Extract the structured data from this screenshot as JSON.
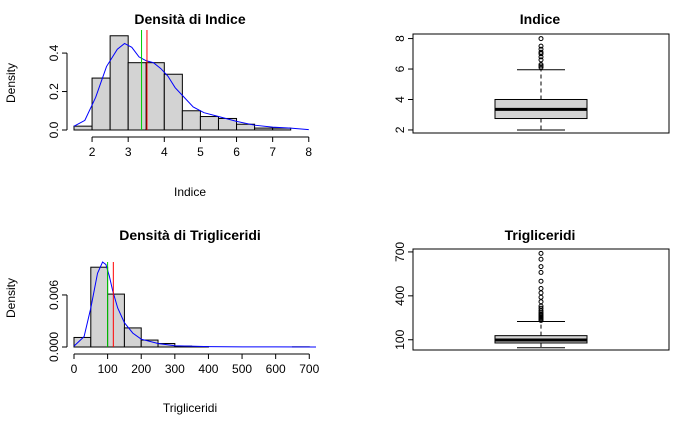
{
  "chart_data": [
    {
      "type": "histogram",
      "title": "Densità di Indice",
      "xlabel": "Indice",
      "ylabel": "Density",
      "xlim": [
        1.5,
        8.2
      ],
      "ylim": [
        0,
        0.52
      ],
      "xticks": [
        "2",
        "3",
        "4",
        "5",
        "6",
        "7",
        "8"
      ],
      "yticks": [
        "0.0",
        "0.2",
        "0.4"
      ],
      "bins": [
        {
          "from": 1.5,
          "to": 2.0,
          "density": 0.02
        },
        {
          "from": 2.0,
          "to": 2.5,
          "density": 0.27
        },
        {
          "from": 2.5,
          "to": 3.0,
          "density": 0.49
        },
        {
          "from": 3.0,
          "to": 3.5,
          "density": 0.35
        },
        {
          "from": 3.5,
          "to": 4.0,
          "density": 0.35
        },
        {
          "from": 4.0,
          "to": 4.5,
          "density": 0.29
        },
        {
          "from": 4.5,
          "to": 5.0,
          "density": 0.1
        },
        {
          "from": 5.0,
          "to": 5.5,
          "density": 0.07
        },
        {
          "from": 5.5,
          "to": 6.0,
          "density": 0.06
        },
        {
          "from": 6.0,
          "to": 6.5,
          "density": 0.03
        },
        {
          "from": 6.5,
          "to": 7.0,
          "density": 0.01
        },
        {
          "from": 7.0,
          "to": 7.5,
          "density": 0.01
        },
        {
          "from": 7.5,
          "to": 8.0,
          "density": 0.0
        }
      ],
      "density_curve": {
        "x": [
          1.5,
          1.8,
          2.1,
          2.4,
          2.7,
          2.9,
          3.1,
          3.3,
          3.5,
          3.7,
          3.9,
          4.1,
          4.3,
          4.5,
          4.8,
          5.1,
          5.5,
          6.0,
          6.5,
          7.0,
          7.5,
          8.0
        ],
        "y": [
          0.02,
          0.05,
          0.17,
          0.33,
          0.42,
          0.45,
          0.43,
          0.38,
          0.36,
          0.35,
          0.32,
          0.28,
          0.22,
          0.18,
          0.12,
          0.09,
          0.07,
          0.045,
          0.025,
          0.015,
          0.01,
          0.002
        ]
      },
      "vlines": [
        {
          "x": 3.37,
          "color": "#00cc00"
        },
        {
          "x": 3.52,
          "color": "#ff0000"
        }
      ],
      "colors": {
        "bar_fill": "#d3d3d3",
        "curve": "#0000ff"
      }
    },
    {
      "type": "boxplot",
      "title": "Indice",
      "ylim": [
        1.8,
        8.3
      ],
      "yticks": [
        "2",
        "4",
        "6",
        "8"
      ],
      "whisker_low": 2.0,
      "q1": 2.75,
      "median": 3.35,
      "q3": 4.0,
      "whisker_high": 5.95,
      "outliers": [
        6.1,
        6.2,
        6.3,
        6.6,
        6.8,
        7.0,
        7.1,
        7.3,
        7.5,
        8.0
      ]
    },
    {
      "type": "histogram",
      "title": "Densità di Trigliceridi",
      "xlabel": "Trigliceridi",
      "ylabel": "Density",
      "xlim": [
        0,
        720
      ],
      "ylim": [
        0,
        0.0098
      ],
      "xticks": [
        "0",
        "100",
        "200",
        "300",
        "400",
        "500",
        "600",
        "700"
      ],
      "yticks": [
        "0.000",
        "0.006"
      ],
      "bins": [
        {
          "from": 0,
          "to": 50,
          "density": 0.0011
        },
        {
          "from": 50,
          "to": 100,
          "density": 0.0092
        },
        {
          "from": 100,
          "to": 150,
          "density": 0.0061
        },
        {
          "from": 150,
          "to": 200,
          "density": 0.0022
        },
        {
          "from": 200,
          "to": 250,
          "density": 0.0008
        },
        {
          "from": 250,
          "to": 300,
          "density": 0.0004
        },
        {
          "from": 300,
          "to": 350,
          "density": 0.0001
        },
        {
          "from": 350,
          "to": 400,
          "density": 5e-05
        },
        {
          "from": 400,
          "to": 450,
          "density": 0.0
        },
        {
          "from": 450,
          "to": 500,
          "density": 0.0
        },
        {
          "from": 500,
          "to": 550,
          "density": 0.0
        },
        {
          "from": 550,
          "to": 600,
          "density": 0.0
        },
        {
          "from": 600,
          "to": 650,
          "density": 0.0
        },
        {
          "from": 650,
          "to": 700,
          "density": 2e-05
        }
      ],
      "density_curve": {
        "x": [
          0,
          30,
          50,
          70,
          85,
          95,
          105,
          115,
          130,
          150,
          175,
          200,
          250,
          300,
          400,
          500,
          600,
          720
        ],
        "y": [
          0.0001,
          0.0012,
          0.0045,
          0.0085,
          0.0098,
          0.0095,
          0.0082,
          0.0065,
          0.0045,
          0.0028,
          0.0016,
          0.0009,
          0.0004,
          0.00015,
          5e-05,
          2e-05,
          1e-05,
          0.0
        ]
      },
      "vlines": [
        {
          "x": 100,
          "color": "#00cc00"
        },
        {
          "x": 117,
          "color": "#ff0000"
        }
      ],
      "colors": {
        "bar_fill": "#d3d3d3",
        "curve": "#0000ff"
      }
    },
    {
      "type": "boxplot",
      "title": "Trigliceridi",
      "ylim": [
        30,
        720
      ],
      "yticks": [
        "100",
        "400",
        "700"
      ],
      "whisker_low": 45,
      "q1": 78,
      "median": 98,
      "q3": 128,
      "whisker_high": 225,
      "outliers": [
        232,
        240,
        248,
        255,
        262,
        270,
        278,
        288,
        300,
        315,
        330,
        360,
        390,
        420,
        450,
        500,
        560,
        600,
        650,
        690
      ]
    }
  ]
}
